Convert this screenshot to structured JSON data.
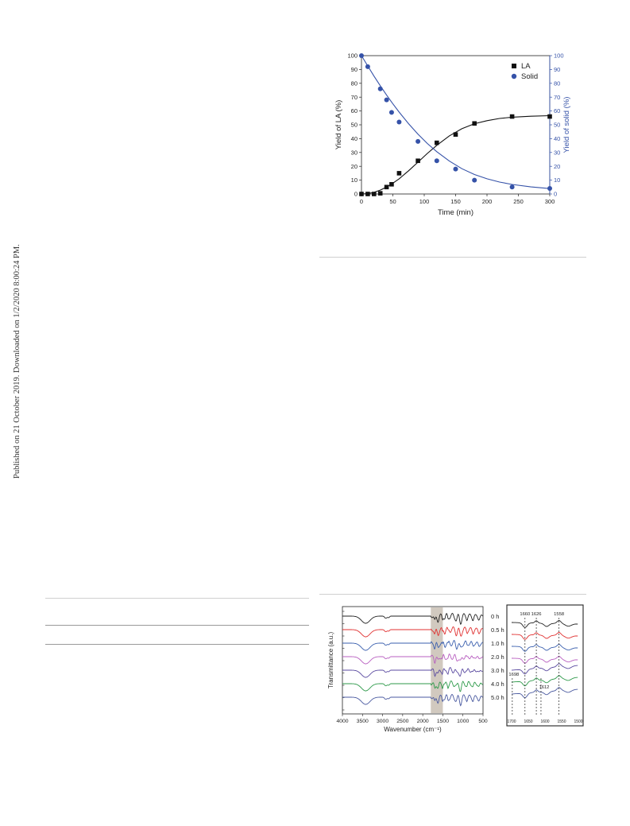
{
  "page": {
    "side_note": "Published on 21 October 2019. Downloaded on 1/2/2020 8:00:24 PM."
  },
  "chart_data": [
    {
      "type": "scatter",
      "xlabel": "Time (min)",
      "ylabel": "Yield of LA (%)",
      "ylabel_right": "Yield of solid (%)",
      "xlim": [
        0,
        300
      ],
      "ylim": [
        0,
        100
      ],
      "ylim_right": [
        0,
        100
      ],
      "x_ticks": [
        0,
        50,
        100,
        150,
        200,
        250,
        300
      ],
      "y_ticks": [
        0,
        10,
        20,
        30,
        40,
        50,
        60,
        70,
        80,
        90,
        100
      ],
      "legend_position": "top-right",
      "grid": false,
      "series": [
        {
          "name": "LA",
          "marker": "square",
          "color": "#111111",
          "axis": "left",
          "x": [
            0,
            10,
            20,
            30,
            40,
            48,
            60,
            90,
            120,
            150,
            180,
            240,
            300
          ],
          "y": [
            0,
            0,
            0,
            0.5,
            5,
            7,
            15,
            24,
            37,
            43,
            51,
            56,
            56
          ],
          "fit": {
            "x": [
              0,
              10,
              20,
              30,
              40,
              50,
              60,
              75,
              90,
              105,
              120,
              140,
              160,
              180,
              200,
              220,
              240,
              270,
              300
            ],
            "y": [
              0,
              0.3,
              1.2,
              2.8,
              5.0,
              7.8,
              11.0,
              16.8,
              23.0,
              29.3,
              35.2,
              42.0,
              47.2,
              50.8,
              53.0,
              54.6,
              55.5,
              56.2,
              56.6
            ]
          }
        },
        {
          "name": "Solid",
          "marker": "circle",
          "color": "#3552a8",
          "axis": "right",
          "x": [
            0,
            10,
            30,
            40,
            48,
            60,
            90,
            120,
            150,
            180,
            240,
            300
          ],
          "y": [
            100,
            92,
            76,
            68,
            59,
            52,
            38,
            24,
            18,
            10,
            5,
            4
          ],
          "fit": {
            "x": [
              0,
              10,
              20,
              30,
              40,
              50,
              60,
              75,
              90,
              105,
              120,
              140,
              160,
              180,
              200,
              220,
              240,
              270,
              300
            ],
            "y": [
              100,
              92.5,
              85.2,
              78.2,
              71.5,
              65.2,
              59.2,
              50.8,
              43.2,
              36.5,
              30.6,
              23.8,
              18.3,
              14.1,
              11.0,
              8.6,
              6.9,
              5.1,
              3.9
            ]
          }
        }
      ]
    },
    {
      "type": "line",
      "ylabel": "Transmittance (a.u.)",
      "xlabel": "Wavenumber (cm⁻¹)",
      "xlim": [
        4000,
        500
      ],
      "x_ticks": [
        4000,
        3500,
        3000,
        2500,
        2000,
        1500,
        1000,
        500
      ],
      "highlight_band": [
        1800,
        1500
      ],
      "series": [
        {
          "name": "0 h",
          "color": "#222222"
        },
        {
          "name": "0.5 h",
          "color": "#e03030"
        },
        {
          "name": "1.0 h",
          "color": "#3a5fae"
        },
        {
          "name": "2.0 h",
          "color": "#b85fc0"
        },
        {
          "name": "3.0 h",
          "color": "#5a4aa0"
        },
        {
          "name": "4.0 h",
          "color": "#2e9a4a"
        },
        {
          "name": "5.0 h",
          "color": "#4a5aa0"
        }
      ],
      "inset": {
        "xlim": [
          1700,
          1500
        ],
        "x_ticks": [
          1700,
          1650,
          1600,
          1550,
          1500
        ],
        "peak_labels": [
          {
            "text": "1660",
            "x": 1660
          },
          {
            "text": "1626",
            "x": 1626
          },
          {
            "text": "1558",
            "x": 1558
          },
          {
            "text": "1698",
            "x": 1698
          },
          {
            "text": "1612",
            "x": 1612
          }
        ]
      }
    }
  ]
}
